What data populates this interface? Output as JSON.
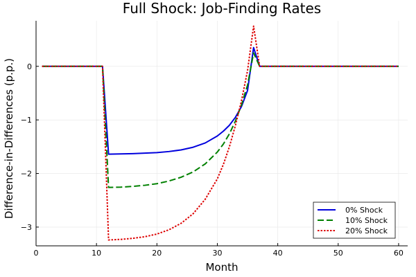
{
  "chart_data": {
    "type": "line",
    "title": "Full Shock: Job-Finding Rates",
    "xlabel": "Month",
    "ylabel": "Difference-in-Differences (p.p.)",
    "xlim": [
      0,
      61.5
    ],
    "ylim": [
      -3.35,
      0.85
    ],
    "xticks": [
      0,
      10,
      20,
      30,
      40,
      50,
      60
    ],
    "yticks": [
      -3,
      -2,
      -1,
      0
    ],
    "ytick_labels": [
      "−3",
      "−2",
      "−1",
      "0"
    ],
    "grid": true,
    "legend_position": "bottom-right",
    "series": [
      {
        "name": "0% Shock",
        "color": "#0000dd",
        "dash": "solid",
        "points": [
          [
            1,
            0
          ],
          [
            11,
            0
          ],
          [
            12,
            -1.64
          ],
          [
            14,
            -1.635
          ],
          [
            16,
            -1.63
          ],
          [
            18,
            -1.62
          ],
          [
            20,
            -1.61
          ],
          [
            22,
            -1.59
          ],
          [
            24,
            -1.56
          ],
          [
            26,
            -1.51
          ],
          [
            28,
            -1.43
          ],
          [
            30,
            -1.3
          ],
          [
            31,
            -1.21
          ],
          [
            32,
            -1.1
          ],
          [
            33,
            -0.95
          ],
          [
            34,
            -0.75
          ],
          [
            35,
            -0.45
          ],
          [
            36,
            0.35
          ],
          [
            37,
            0
          ],
          [
            60,
            0
          ]
        ]
      },
      {
        "name": "10% Shock",
        "color": "#008000",
        "dash": "dashed",
        "points": [
          [
            1,
            0
          ],
          [
            11,
            0
          ],
          [
            12,
            -2.26
          ],
          [
            14,
            -2.255
          ],
          [
            16,
            -2.24
          ],
          [
            18,
            -2.22
          ],
          [
            20,
            -2.19
          ],
          [
            22,
            -2.14
          ],
          [
            24,
            -2.07
          ],
          [
            26,
            -1.97
          ],
          [
            28,
            -1.82
          ],
          [
            30,
            -1.6
          ],
          [
            31,
            -1.45
          ],
          [
            32,
            -1.26
          ],
          [
            33,
            -1.02
          ],
          [
            34,
            -0.72
          ],
          [
            35,
            -0.35
          ],
          [
            36,
            0.25
          ],
          [
            37,
            0
          ],
          [
            60,
            0
          ]
        ]
      },
      {
        "name": "20% Shock",
        "color": "#dd0000",
        "dash": "dotted",
        "points": [
          [
            1,
            0
          ],
          [
            11,
            0
          ],
          [
            12,
            -3.24
          ],
          [
            14,
            -3.23
          ],
          [
            16,
            -3.21
          ],
          [
            18,
            -3.18
          ],
          [
            20,
            -3.13
          ],
          [
            22,
            -3.05
          ],
          [
            24,
            -2.93
          ],
          [
            26,
            -2.75
          ],
          [
            28,
            -2.48
          ],
          [
            30,
            -2.1
          ],
          [
            31,
            -1.83
          ],
          [
            32,
            -1.5
          ],
          [
            33,
            -1.1
          ],
          [
            34,
            -0.64
          ],
          [
            35,
            -0.08
          ],
          [
            36,
            0.75
          ],
          [
            37,
            0
          ],
          [
            60,
            0
          ]
        ]
      }
    ]
  }
}
